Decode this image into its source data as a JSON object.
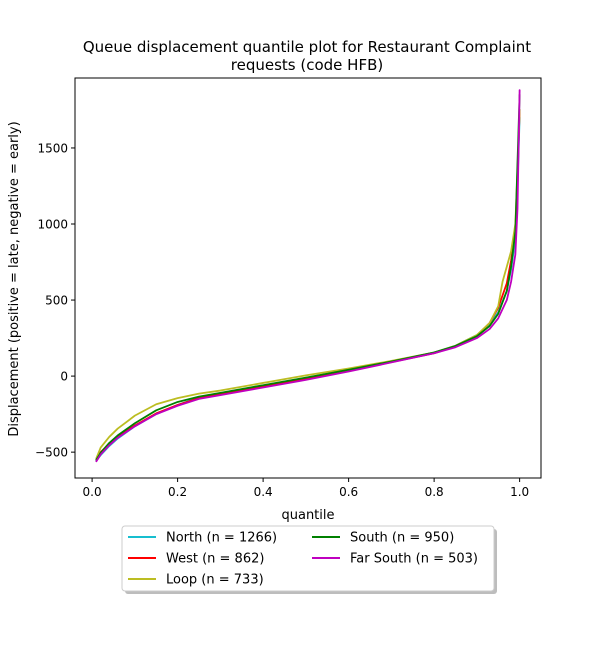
{
  "chart_data": {
    "type": "line",
    "title_line1": "Queue displacement quantile plot for Restaurant Complaint",
    "title_line2": "requests (code HFB)",
    "xlabel": "quantile",
    "ylabel": "Displacement (positive = late, negative = early)",
    "xlim": [
      -0.04,
      1.05
    ],
    "ylim": [
      -670,
      1960
    ],
    "xticks": [
      0.0,
      0.2,
      0.4,
      0.6,
      0.8,
      1.0
    ],
    "xtick_labels": [
      "0.0",
      "0.2",
      "0.4",
      "0.6",
      "0.8",
      "1.0"
    ],
    "yticks": [
      -500,
      0,
      500,
      1000,
      1500
    ],
    "ytick_labels": [
      "−500",
      "0",
      "500",
      "1000",
      "1500"
    ],
    "grid": false,
    "legend_placement": "below plot, two columns, with shadow",
    "series": [
      {
        "name": "North (n = 1266)",
        "color": "#17becf",
        "x": [
          0.01,
          0.02,
          0.04,
          0.06,
          0.1,
          0.15,
          0.2,
          0.25,
          0.3,
          0.4,
          0.5,
          0.6,
          0.7,
          0.8,
          0.85,
          0.9,
          0.93,
          0.95,
          0.97,
          0.98,
          0.99,
          0.995,
          1.0
        ],
        "y": [
          -555,
          -520,
          -460,
          -410,
          -330,
          -250,
          -190,
          -140,
          -115,
          -65,
          -15,
          40,
          95,
          155,
          200,
          270,
          340,
          420,
          560,
          700,
          900,
          1250,
          1700
        ]
      },
      {
        "name": "West (n = 862)",
        "color": "#ff0000",
        "x": [
          0.01,
          0.02,
          0.04,
          0.06,
          0.1,
          0.15,
          0.2,
          0.25,
          0.3,
          0.4,
          0.5,
          0.6,
          0.7,
          0.8,
          0.85,
          0.9,
          0.93,
          0.95,
          0.97,
          0.98,
          0.99,
          0.995,
          1.0
        ],
        "y": [
          -545,
          -500,
          -445,
          -400,
          -325,
          -245,
          -190,
          -145,
          -120,
          -70,
          -20,
          35,
          92,
          150,
          195,
          265,
          350,
          450,
          610,
          760,
          950,
          1300,
          1750
        ]
      },
      {
        "name": "Loop (n = 733)",
        "color": "#bcbd22",
        "x": [
          0.01,
          0.02,
          0.04,
          0.06,
          0.1,
          0.15,
          0.2,
          0.25,
          0.3,
          0.4,
          0.5,
          0.6,
          0.7,
          0.8,
          0.85,
          0.9,
          0.93,
          0.95,
          0.96,
          0.97,
          0.98,
          0.99,
          0.995,
          1.0
        ],
        "y": [
          -540,
          -470,
          -400,
          -345,
          -260,
          -185,
          -145,
          -115,
          -95,
          -45,
          5,
          50,
          100,
          155,
          200,
          270,
          350,
          460,
          620,
          720,
          820,
          1000,
          1350,
          1750
        ]
      },
      {
        "name": "South (n = 950)",
        "color": "#008000",
        "x": [
          0.01,
          0.02,
          0.04,
          0.06,
          0.1,
          0.15,
          0.2,
          0.25,
          0.3,
          0.4,
          0.5,
          0.6,
          0.7,
          0.8,
          0.85,
          0.9,
          0.93,
          0.95,
          0.97,
          0.98,
          0.99,
          0.995,
          1.0
        ],
        "y": [
          -550,
          -505,
          -440,
          -390,
          -310,
          -225,
          -170,
          -135,
          -110,
          -60,
          -10,
          42,
          96,
          155,
          198,
          262,
          330,
          410,
          560,
          720,
          950,
          1400,
          1850
        ]
      },
      {
        "name": "Far South (n = 503)",
        "color": "#bf00bf",
        "x": [
          0.01,
          0.02,
          0.04,
          0.06,
          0.1,
          0.15,
          0.2,
          0.25,
          0.3,
          0.4,
          0.5,
          0.6,
          0.7,
          0.8,
          0.85,
          0.9,
          0.93,
          0.95,
          0.97,
          0.98,
          0.99,
          0.995,
          1.0
        ],
        "y": [
          -560,
          -515,
          -455,
          -405,
          -330,
          -250,
          -195,
          -150,
          -125,
          -75,
          -25,
          30,
          90,
          150,
          190,
          250,
          310,
          380,
          500,
          620,
          800,
          1100,
          1880
        ]
      }
    ]
  }
}
